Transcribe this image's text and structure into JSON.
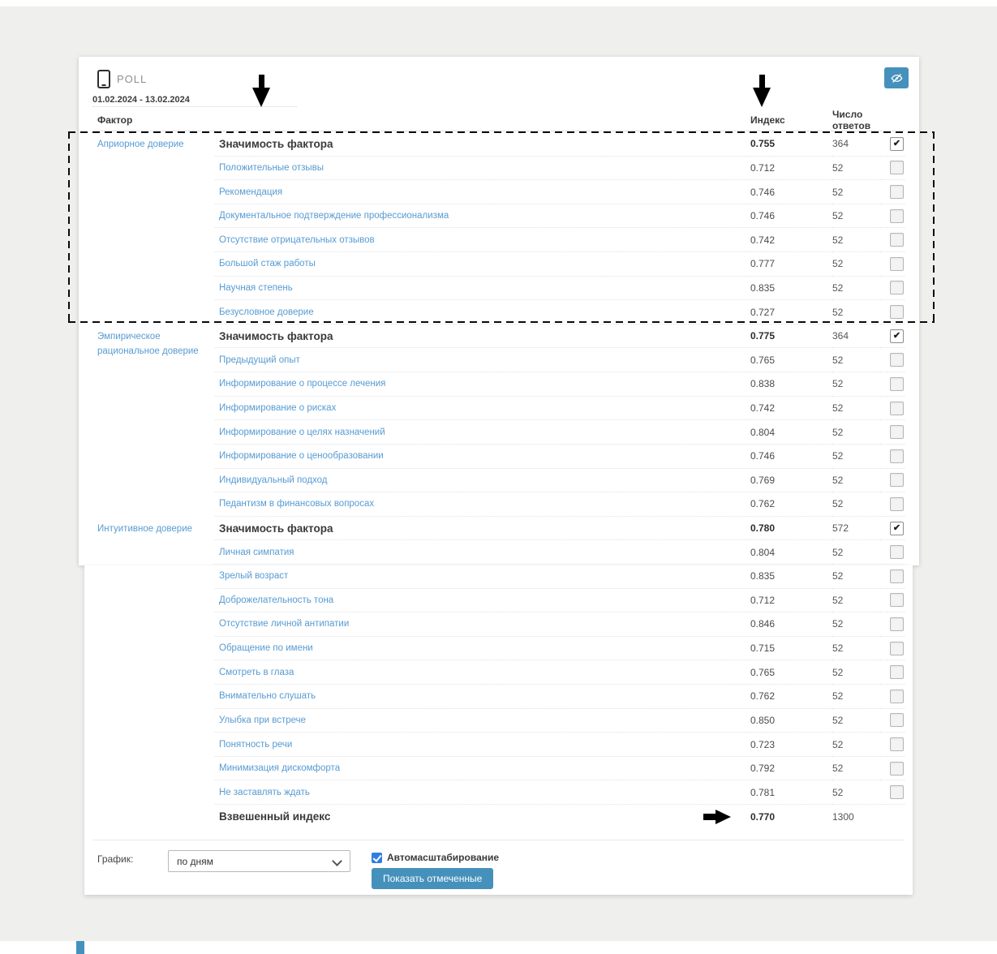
{
  "header": {
    "app_title": "POLL",
    "date_range": "01.02.2024 - 13.02.2024"
  },
  "columns": {
    "factor": "Фактор",
    "index": "Индекс",
    "answers": "Число ответов"
  },
  "table": {
    "groups": [
      {
        "label": "Априорное доверие",
        "rows": [
          {
            "name": "Значимость фактора",
            "index": "0.755",
            "answers": "364",
            "header": true,
            "checked": true
          },
          {
            "name": "Положительные отзывы",
            "index": "0.712",
            "answers": "52",
            "header": false,
            "checked": false
          },
          {
            "name": "Рекомендация",
            "index": "0.746",
            "answers": "52",
            "header": false,
            "checked": false
          },
          {
            "name": "Документальное подтверждение профессионализма",
            "index": "0.746",
            "answers": "52",
            "header": false,
            "checked": false
          },
          {
            "name": "Отсутствие отрицательных отзывов",
            "index": "0.742",
            "answers": "52",
            "header": false,
            "checked": false
          },
          {
            "name": "Большой стаж работы",
            "index": "0.777",
            "answers": "52",
            "header": false,
            "checked": false
          },
          {
            "name": "Научная степень",
            "index": "0.835",
            "answers": "52",
            "header": false,
            "checked": false
          },
          {
            "name": "Безусловное доверие",
            "index": "0.727",
            "answers": "52",
            "header": false,
            "checked": false
          }
        ]
      },
      {
        "label": "Эмпирическое рациональное доверие",
        "rows": [
          {
            "name": "Значимость фактора",
            "index": "0.775",
            "answers": "364",
            "header": true,
            "checked": true
          },
          {
            "name": "Предыдущий опыт",
            "index": "0.765",
            "answers": "52",
            "header": false,
            "checked": false
          },
          {
            "name": "Информирование о процессе лечения",
            "index": "0.838",
            "answers": "52",
            "header": false,
            "checked": false
          },
          {
            "name": "Информирование о рисках",
            "index": "0.742",
            "answers": "52",
            "header": false,
            "checked": false
          },
          {
            "name": "Информирование о целях назначений",
            "index": "0.804",
            "answers": "52",
            "header": false,
            "checked": false
          },
          {
            "name": "Информирование о ценообразовании",
            "index": "0.746",
            "answers": "52",
            "header": false,
            "checked": false
          },
          {
            "name": "Индивидуальный подход",
            "index": "0.769",
            "answers": "52",
            "header": false,
            "checked": false
          },
          {
            "name": "Педантизм в финансовых вопросах",
            "index": "0.762",
            "answers": "52",
            "header": false,
            "checked": false
          }
        ]
      },
      {
        "label": "Интуитивное доверие",
        "rows": [
          {
            "name": "Значимость фактора",
            "index": "0.780",
            "answers": "572",
            "header": true,
            "checked": true
          },
          {
            "name": "Личная симпатия",
            "index": "0.804",
            "answers": "52",
            "header": false,
            "checked": false
          },
          {
            "name": "Зрелый возраст",
            "index": "0.835",
            "answers": "52",
            "header": false,
            "checked": false
          },
          {
            "name": "Доброжелательность тона",
            "index": "0.712",
            "answers": "52",
            "header": false,
            "checked": false
          },
          {
            "name": "Отсутствие личной антипатии",
            "index": "0.846",
            "answers": "52",
            "header": false,
            "checked": false
          },
          {
            "name": "Обращение по имени",
            "index": "0.715",
            "answers": "52",
            "header": false,
            "checked": false
          },
          {
            "name": "Смотреть в глаза",
            "index": "0.765",
            "answers": "52",
            "header": false,
            "checked": false
          },
          {
            "name": "Внимательно слушать",
            "index": "0.762",
            "answers": "52",
            "header": false,
            "checked": false
          },
          {
            "name": "Улыбка при встрече",
            "index": "0.850",
            "answers": "52",
            "header": false,
            "checked": false
          },
          {
            "name": "Понятность речи",
            "index": "0.723",
            "answers": "52",
            "header": false,
            "checked": false
          },
          {
            "name": "Минимизация дискомфорта",
            "index": "0.792",
            "answers": "52",
            "header": false,
            "checked": false
          },
          {
            "name": "Не заставлять ждать",
            "index": "0.781",
            "answers": "52",
            "header": false,
            "checked": false
          }
        ]
      }
    ],
    "summary": {
      "label": "Взвешенный индекс",
      "index": "0.770",
      "answers": "1300"
    }
  },
  "footer": {
    "chart_label": "График:",
    "chart_select_value": "по дням",
    "autoscale_label": "Автомасштабирование",
    "autoscale_checked": true,
    "show_marked_button": "Показать отмеченные"
  },
  "annotations": {
    "dashed_highlight_box": "dashed rectangle around first factor group",
    "arrow_down_factor_column": "black down arrow above factor column",
    "arrow_down_index_column": "black down arrow above index column",
    "arrow_right_weighted_index": "black right arrow pointing at weighted index value"
  },
  "colors": {
    "accent": "#4591bc",
    "link": "#579bd2",
    "checkbox_blue": "#2f7de1",
    "background": "#efefee"
  }
}
